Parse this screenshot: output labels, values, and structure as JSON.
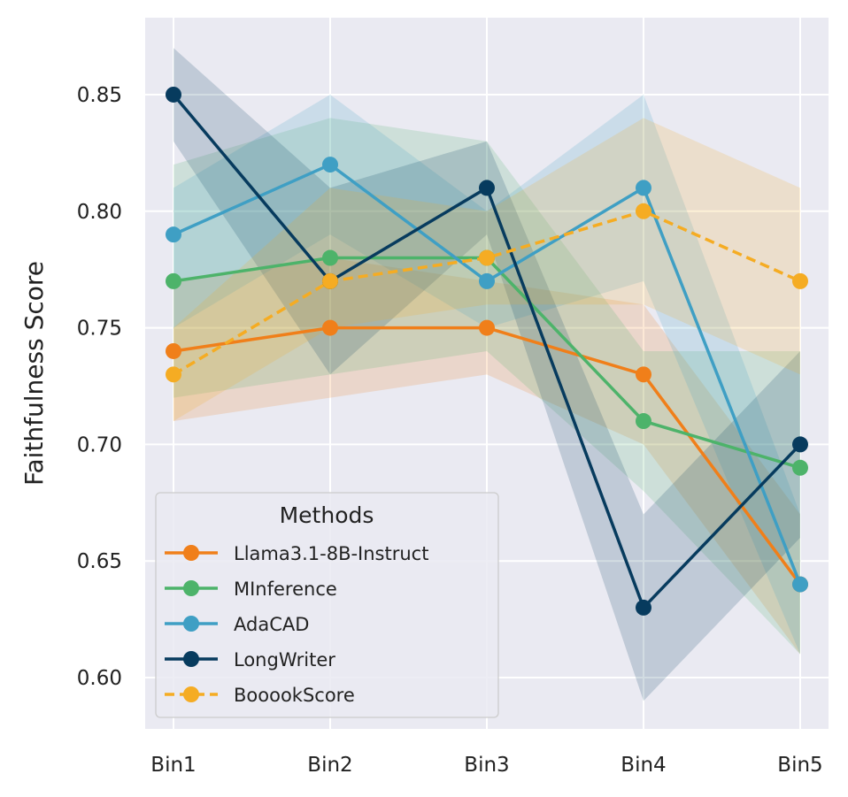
{
  "chart_data": {
    "type": "line",
    "title": "",
    "xlabel": "",
    "ylabel": "Faithfulness Score",
    "categories": [
      "Bin1",
      "Bin2",
      "Bin3",
      "Bin4",
      "Bin5"
    ],
    "ylim": [
      0.578,
      0.883
    ],
    "yticks": [
      "0.60",
      "0.65",
      "0.70",
      "0.75",
      "0.80",
      "0.85"
    ],
    "grid": true,
    "legend": {
      "title": "Methods",
      "position": "lower-left"
    },
    "series": [
      {
        "name": "Llama3.1-8B-Instruct",
        "color": "#f07f1a",
        "dashed": false,
        "values": [
          0.74,
          0.75,
          0.75,
          0.73,
          0.64
        ],
        "lower": [
          0.71,
          0.72,
          0.73,
          0.7,
          0.61
        ],
        "upper": [
          0.77,
          0.78,
          0.77,
          0.76,
          0.67
        ]
      },
      {
        "name": "MInference",
        "color": "#4db36a",
        "dashed": false,
        "values": [
          0.77,
          0.78,
          0.78,
          0.71,
          0.69
        ],
        "lower": [
          0.72,
          0.73,
          0.74,
          0.68,
          0.61
        ],
        "upper": [
          0.82,
          0.84,
          0.83,
          0.74,
          0.74
        ]
      },
      {
        "name": "AdaCAD",
        "color": "#3f9fc4",
        "dashed": false,
        "values": [
          0.79,
          0.82,
          0.77,
          0.81,
          0.64
        ],
        "lower": [
          0.75,
          0.79,
          0.75,
          0.77,
          0.61
        ],
        "upper": [
          0.81,
          0.85,
          0.8,
          0.85,
          0.67
        ]
      },
      {
        "name": "LongWriter",
        "color": "#073b5e",
        "dashed": false,
        "values": [
          0.85,
          0.77,
          0.81,
          0.63,
          0.7
        ],
        "lower": [
          0.83,
          0.73,
          0.79,
          0.59,
          0.66
        ],
        "upper": [
          0.87,
          0.81,
          0.83,
          0.67,
          0.74
        ]
      },
      {
        "name": "BooookScore",
        "color": "#f5ac23",
        "dashed": true,
        "values": [
          0.73,
          0.77,
          0.78,
          0.8,
          0.77
        ],
        "lower": [
          0.71,
          0.75,
          0.76,
          0.76,
          0.73
        ],
        "upper": [
          0.75,
          0.81,
          0.8,
          0.84,
          0.81
        ]
      }
    ]
  }
}
